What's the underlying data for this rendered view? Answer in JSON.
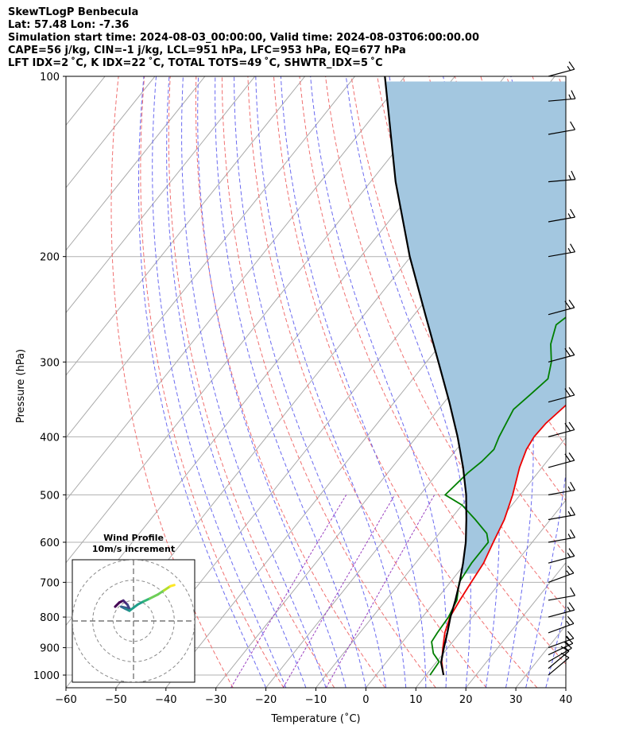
{
  "header": {
    "line1": "SkewTLogP Benbecula",
    "line2": "Lat: 57.48   Lon: -7.36",
    "line3": "Simulation start time: 2024-08-03_00:00:00, Valid time: 2024-08-03T06:00:00.00",
    "line4": "CAPE=56 j/kg, CIN=-1 j/kg, LCL=951 hPa, LFC=953 hPa, EQ=677 hPa",
    "line5": "LFT IDX=2 ˚C, K IDX=22 ˚C, TOTAL TOTS=49 ˚C, SHWTR_IDX=5 ˚C"
  },
  "chart_data": {
    "type": "line",
    "subtype": "skew-t log-p",
    "xlabel": "Temperature (˚C)",
    "ylabel": "Pressure (hPa)",
    "xlim": [
      -60,
      40
    ],
    "ylim": [
      1050,
      100
    ],
    "y_scale": "log",
    "x_ticks": [
      -60,
      -50,
      -40,
      -30,
      -20,
      -10,
      0,
      10,
      20,
      30,
      40
    ],
    "y_ticks": [
      100,
      200,
      300,
      400,
      500,
      600,
      700,
      800,
      900,
      1000
    ],
    "grid": true,
    "series": [
      {
        "color": "#ee0000",
        "points": [
          [
            1000,
            13.5
          ],
          [
            950,
            11
          ],
          [
            900,
            9
          ],
          [
            850,
            7
          ],
          [
            800,
            5.5
          ],
          [
            750,
            4.8
          ],
          [
            700,
            4.2
          ],
          [
            650,
            3.6
          ],
          [
            600,
            2.2
          ],
          [
            550,
            0.8
          ],
          [
            500,
            -1.5
          ],
          [
            450,
            -4.5
          ],
          [
            420,
            -6
          ],
          [
            400,
            -6.5
          ],
          [
            380,
            -6.3
          ],
          [
            350,
            -5
          ],
          [
            320,
            -3.5
          ],
          [
            300,
            -2
          ],
          [
            280,
            -1
          ],
          [
            250,
            0.5
          ],
          [
            230,
            2
          ],
          [
            200,
            3.3
          ],
          [
            180,
            4.3
          ],
          [
            160,
            5.5
          ],
          [
            150,
            6.3
          ],
          [
            140,
            6.6
          ],
          [
            130,
            7.2
          ],
          [
            120,
            7.2
          ],
          [
            115,
            7.4
          ],
          [
            110,
            8
          ],
          [
            100,
            9
          ]
        ]
      },
      {
        "color": "#007f00",
        "points": [
          [
            1000,
            10.8
          ],
          [
            950,
            10.5
          ],
          [
            920,
            8
          ],
          [
            880,
            5.8
          ],
          [
            850,
            5.5
          ],
          [
            800,
            5.2
          ],
          [
            750,
            4.2
          ],
          [
            700,
            1.8
          ],
          [
            650,
            1.2
          ],
          [
            620,
            1.2
          ],
          [
            600,
            1.2
          ],
          [
            580,
            -0.5
          ],
          [
            550,
            -5
          ],
          [
            520,
            -10
          ],
          [
            500,
            -15
          ],
          [
            460,
            -14
          ],
          [
            440,
            -13
          ],
          [
            420,
            -12.5
          ],
          [
            400,
            -13.5
          ],
          [
            360,
            -15
          ],
          [
            340,
            -14
          ],
          [
            320,
            -13
          ],
          [
            300,
            -15
          ],
          [
            280,
            -18
          ],
          [
            260,
            -20
          ],
          [
            250,
            -19
          ],
          [
            230,
            -16
          ],
          [
            210,
            -13
          ],
          [
            200,
            -12
          ],
          [
            180,
            -12.5
          ],
          [
            170,
            -13
          ],
          [
            150,
            -10
          ],
          [
            130,
            -6
          ],
          [
            110,
            -2
          ],
          [
            100,
            0
          ]
        ]
      },
      {
        "color": "#000000",
        "points": [
          [
            1000,
            13.5
          ],
          [
            953,
            11
          ],
          [
            900,
            9.2
          ],
          [
            850,
            7.5
          ],
          [
            800,
            5.6
          ],
          [
            750,
            3.9
          ],
          [
            700,
            1.9
          ],
          [
            650,
            -0.5
          ],
          [
            600,
            -3.3
          ],
          [
            550,
            -6.8
          ],
          [
            500,
            -10.8
          ],
          [
            450,
            -15.8
          ],
          [
            400,
            -21.8
          ],
          [
            350,
            -29
          ],
          [
            300,
            -37.6
          ],
          [
            250,
            -47.8
          ],
          [
            200,
            -60.2
          ],
          [
            150,
            -75
          ],
          [
            100,
            -94
          ]
        ]
      }
    ],
    "cape_shading": {
      "color": "#a3c7e0",
      "from_hpa": 677,
      "to_hpa": 100
    },
    "wind_barbs": [
      {
        "p": 1000,
        "spd": 10,
        "dir": 230
      },
      {
        "p": 975,
        "spd": 10,
        "dir": 230
      },
      {
        "p": 950,
        "spd": 15,
        "dir": 240
      },
      {
        "p": 925,
        "spd": 15,
        "dir": 245
      },
      {
        "p": 900,
        "spd": 15,
        "dir": 250
      },
      {
        "p": 850,
        "spd": 15,
        "dir": 250
      },
      {
        "p": 800,
        "spd": 15,
        "dir": 255
      },
      {
        "p": 750,
        "spd": 10,
        "dir": 260
      },
      {
        "p": 700,
        "spd": 15,
        "dir": 250
      },
      {
        "p": 650,
        "spd": 15,
        "dir": 255
      },
      {
        "p": 600,
        "spd": 15,
        "dir": 260
      },
      {
        "p": 550,
        "spd": 15,
        "dir": 260
      },
      {
        "p": 500,
        "spd": 15,
        "dir": 260
      },
      {
        "p": 450,
        "spd": 20,
        "dir": 255
      },
      {
        "p": 400,
        "spd": 20,
        "dir": 255
      },
      {
        "p": 350,
        "spd": 20,
        "dir": 255
      },
      {
        "p": 300,
        "spd": 20,
        "dir": 255
      },
      {
        "p": 250,
        "spd": 20,
        "dir": 255
      },
      {
        "p": 200,
        "spd": 15,
        "dir": 260
      },
      {
        "p": 175,
        "spd": 15,
        "dir": 260
      },
      {
        "p": 150,
        "spd": 15,
        "dir": 265
      },
      {
        "p": 125,
        "spd": 10,
        "dir": 260
      },
      {
        "p": 110,
        "spd": 15,
        "dir": 265
      },
      {
        "p": 100,
        "spd": 15,
        "dir": 255
      }
    ],
    "hodograph": {
      "title": "Wind Profile",
      "subtitle": "10m/s increment",
      "range": 15,
      "rings": [
        5,
        10,
        15
      ],
      "trace": [
        [
          -4.5,
          3.5
        ],
        [
          -3.5,
          4.5
        ],
        [
          -2.5,
          5
        ],
        [
          -1.5,
          4
        ],
        [
          -1,
          3
        ],
        [
          -3,
          3.5
        ],
        [
          -2,
          3
        ],
        [
          -1,
          2.5
        ],
        [
          1,
          4
        ],
        [
          2.5,
          4.8
        ],
        [
          4,
          5.5
        ],
        [
          6,
          6.5
        ],
        [
          7.5,
          7.5
        ],
        [
          9,
          8.5
        ],
        [
          10,
          8.8
        ]
      ],
      "trace_colors": [
        "#440154",
        "#482576",
        "#414487",
        "#31688e",
        "#26828e",
        "#1f9e89",
        "#35b779",
        "#6ece58",
        "#b5de2b",
        "#fde725"
      ]
    }
  }
}
